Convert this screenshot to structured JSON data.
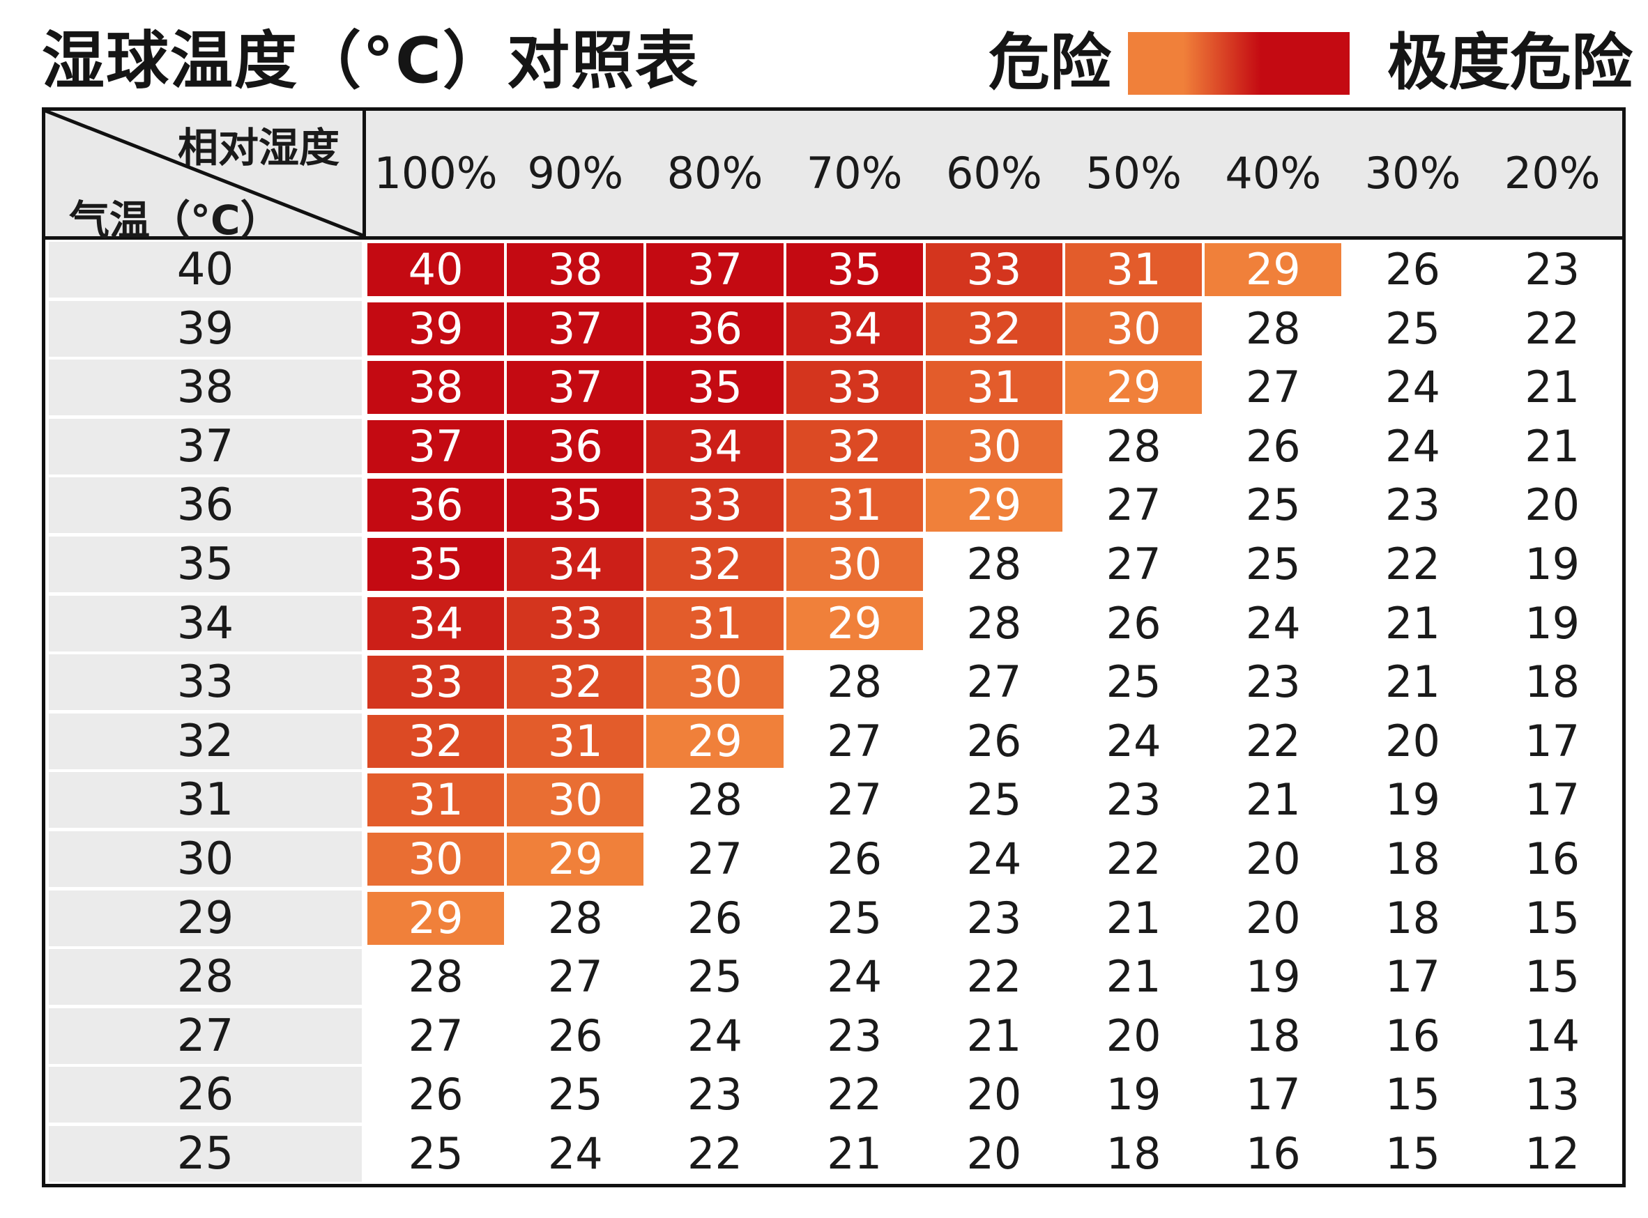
{
  "header": {
    "title": "湿球温度（°C）对照表",
    "legend_low": "危险",
    "legend_high": "极度危险"
  },
  "colors": {
    "danger_light": "#f0803a",
    "danger_mid": "#dc4a24",
    "danger_extreme": "#c40a12",
    "header_bg": "#e9e9e9",
    "row_head_bg": "#ebebeb"
  },
  "chart_data": {
    "type": "table",
    "title": "湿球温度（°C）对照表",
    "col_axis_label": "相对湿度",
    "row_axis_label": "气温（°C）",
    "columns": [
      "100%",
      "90%",
      "80%",
      "70%",
      "60%",
      "50%",
      "40%",
      "30%",
      "20%"
    ],
    "rows": [
      "40",
      "39",
      "38",
      "37",
      "36",
      "35",
      "34",
      "33",
      "32",
      "31",
      "30",
      "29",
      "28",
      "27",
      "26",
      "25"
    ],
    "values": [
      [
        40,
        38,
        37,
        35,
        33,
        31,
        29,
        26,
        23
      ],
      [
        39,
        37,
        36,
        34,
        32,
        30,
        28,
        25,
        22
      ],
      [
        38,
        37,
        35,
        33,
        31,
        29,
        27,
        24,
        21
      ],
      [
        37,
        36,
        34,
        32,
        30,
        28,
        26,
        24,
        21
      ],
      [
        36,
        35,
        33,
        31,
        29,
        27,
        25,
        23,
        20
      ],
      [
        35,
        34,
        32,
        30,
        28,
        27,
        25,
        22,
        19
      ],
      [
        34,
        33,
        31,
        29,
        28,
        26,
        24,
        21,
        19
      ],
      [
        33,
        32,
        30,
        28,
        27,
        25,
        23,
        21,
        18
      ],
      [
        32,
        31,
        29,
        27,
        26,
        24,
        22,
        20,
        17
      ],
      [
        31,
        30,
        28,
        27,
        25,
        23,
        21,
        19,
        17
      ],
      [
        30,
        29,
        27,
        26,
        24,
        22,
        20,
        18,
        16
      ],
      [
        29,
        28,
        26,
        25,
        23,
        21,
        20,
        18,
        15
      ],
      [
        28,
        27,
        25,
        24,
        22,
        21,
        19,
        17,
        15
      ],
      [
        27,
        26,
        24,
        23,
        21,
        20,
        18,
        16,
        14
      ],
      [
        26,
        25,
        23,
        22,
        20,
        19,
        17,
        15,
        13
      ],
      [
        25,
        24,
        22,
        21,
        20,
        18,
        16,
        15,
        12
      ]
    ],
    "danger_threshold": 29,
    "legend": [
      "危险",
      "极度危险"
    ]
  }
}
